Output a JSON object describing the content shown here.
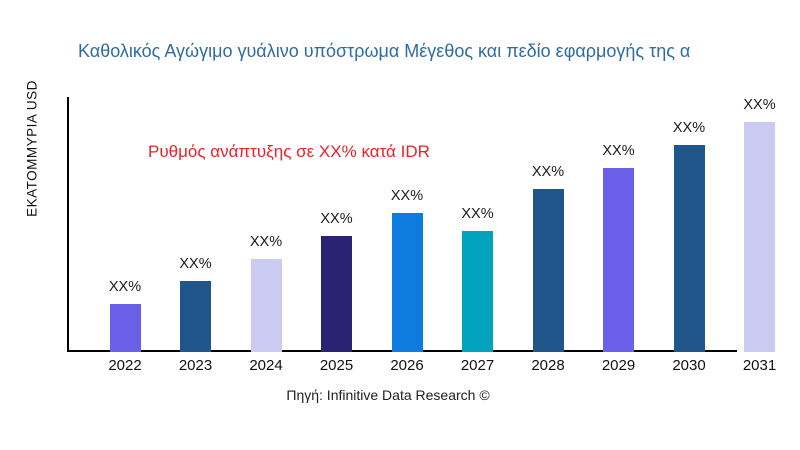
{
  "chart_data": {
    "type": "bar",
    "title": "Καθολικός Αγώγιμο γυάλινο υπόστρωμα Μέγεθος και πεδίο εφαρμογής της α",
    "ylabel": "ΕΚΑΤΟΜΜΥΡΙΑ USD",
    "xlabel": "",
    "annotation": "Ρυθμός ανάπτυξης σε XX% κατά IDR",
    "source": "Πηγή: Infinitive Data Research ©",
    "legend": null,
    "grid": false,
    "categories": [
      "2022",
      "2023",
      "2024",
      "2025",
      "2026",
      "2027",
      "2028",
      "2029",
      "2030",
      "2031"
    ],
    "values": [
      48,
      71,
      93,
      116,
      139,
      121,
      163,
      184,
      207,
      230
    ],
    "value_labels": [
      "XX%",
      "XX%",
      "XX%",
      "XX%",
      "XX%",
      "XX%",
      "XX%",
      "XX%",
      "XX%",
      "XX%"
    ],
    "bar_colors": [
      "#6C60E8",
      "#21568A",
      "#C9CBF0",
      "#2A2272",
      "#0D7BE0",
      "#02A3BE",
      "#21568A",
      "#6C60E8",
      "#21568A",
      "#C9CBF0"
    ],
    "axis_color": "#000000",
    "title_color": "#2F6CA4",
    "annotation_color": "#EC2127",
    "label_color": "#1A1A1A"
  }
}
